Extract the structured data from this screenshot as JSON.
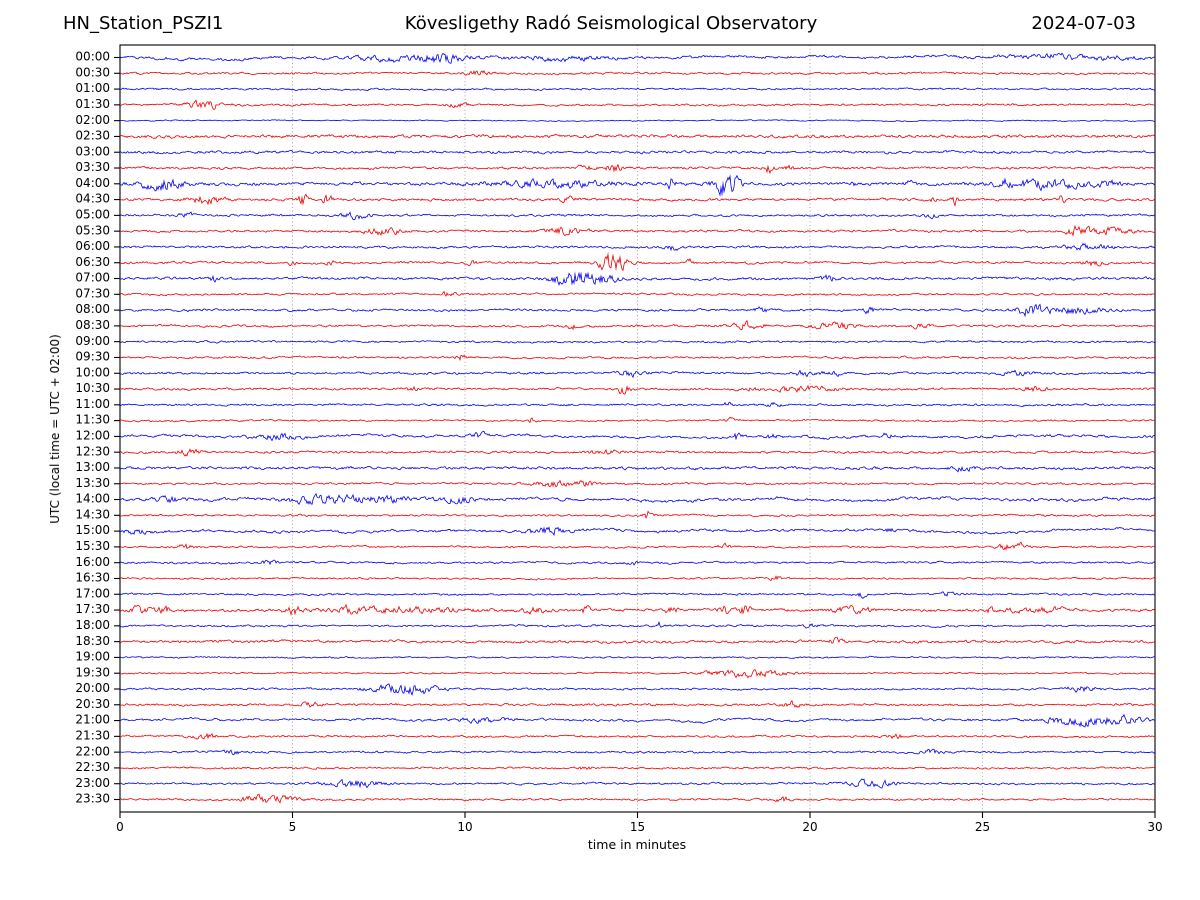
{
  "header": {
    "station": "HN_Station_PSZI1",
    "title": "Kövesligethy Radó Seismological Observatory",
    "date": "2024-07-03"
  },
  "chart_data": {
    "type": "line",
    "variant": "helicorder-day-plot",
    "station": "HN_Station_PSZI1",
    "title": "Kövesligethy Radó Seismological Observatory",
    "date": "2024-07-03",
    "xlabel": "time in minutes",
    "ylabel": "UTC (local time = UTC + 02:00)",
    "x_range": [
      0,
      30
    ],
    "x_ticks": [
      0,
      5,
      10,
      15,
      20,
      25,
      30
    ],
    "grid_minutes": [
      5,
      10,
      15,
      20,
      25
    ],
    "minutes_per_row": 30,
    "grid_on": true,
    "legend": "none",
    "colors": {
      "b": "#0000ee",
      "r": "#ee0000"
    },
    "axis_color": "#000000",
    "grid_color": "#9a9a9a",
    "ev_format": "[center_minute, relative_amplitude, duration_minutes]",
    "rows": [
      {
        "label": "00:00",
        "c": "b",
        "n": 0.75,
        "lp": 1,
        "ev": [
          [
            8.0,
            1.2,
            1.5
          ],
          [
            9.3,
            2.2,
            0.9
          ],
          [
            12.8,
            1.0,
            2.0
          ],
          [
            27.5,
            1.1,
            2.5
          ]
        ]
      },
      {
        "label": "00:30",
        "c": "r",
        "n": 0.65,
        "lp": 0,
        "ev": [
          [
            10.4,
            1.1,
            0.6
          ]
        ]
      },
      {
        "label": "01:00",
        "c": "b",
        "n": 0.6,
        "lp": 0,
        "ev": []
      },
      {
        "label": "01:30",
        "c": "r",
        "n": 0.6,
        "lp": 0,
        "ev": [
          [
            2.5,
            1.9,
            0.8
          ],
          [
            9.8,
            1.1,
            0.4
          ]
        ]
      },
      {
        "label": "02:00",
        "c": "b",
        "n": 0.35,
        "lp": 0,
        "ev": []
      },
      {
        "label": "02:30",
        "c": "r",
        "n": 0.95,
        "lp": 0,
        "ev": []
      },
      {
        "label": "03:00",
        "c": "b",
        "n": 0.8,
        "lp": 0,
        "ev": []
      },
      {
        "label": "03:30",
        "c": "r",
        "n": 0.7,
        "lp": 0,
        "ev": [
          [
            13.5,
            1.5,
            0.3
          ],
          [
            14.3,
            2.1,
            0.3
          ],
          [
            18.8,
            2.2,
            0.2
          ],
          [
            19.4,
            1.3,
            0.2
          ]
        ]
      },
      {
        "label": "04:00",
        "c": "b",
        "n": 0.95,
        "lp": 0,
        "ev": [
          [
            1.2,
            3.0,
            0.8
          ],
          [
            12.5,
            1.7,
            2.5
          ],
          [
            16.0,
            3.4,
            0.15
          ],
          [
            17.6,
            6.0,
            0.5
          ],
          [
            21.3,
            1.6,
            0.12
          ],
          [
            22.9,
            1.5,
            0.2
          ],
          [
            25.6,
            2.0,
            0.3
          ],
          [
            26.9,
            2.1,
            1.6
          ],
          [
            28.7,
            1.4,
            0.5
          ]
        ]
      },
      {
        "label": "04:30",
        "c": "r",
        "n": 0.8,
        "lp": 0,
        "ev": [
          [
            2.5,
            2.0,
            0.7
          ],
          [
            5.3,
            3.2,
            0.18
          ],
          [
            6.0,
            3.0,
            0.18
          ],
          [
            13.0,
            1.5,
            0.3
          ],
          [
            23.5,
            1.3,
            0.2
          ],
          [
            24.2,
            2.7,
            0.12
          ],
          [
            27.3,
            2.6,
            0.12
          ]
        ]
      },
      {
        "label": "05:00",
        "c": "b",
        "n": 0.65,
        "lp": 0,
        "ev": [
          [
            1.9,
            1.4,
            0.3
          ],
          [
            6.8,
            1.8,
            0.6
          ],
          [
            23.5,
            1.3,
            0.3
          ]
        ]
      },
      {
        "label": "05:30",
        "c": "r",
        "n": 0.7,
        "lp": 0,
        "ev": [
          [
            7.6,
            1.6,
            0.8
          ],
          [
            12.9,
            1.6,
            0.9
          ],
          [
            27.8,
            2.6,
            0.5
          ],
          [
            28.7,
            1.5,
            0.8
          ]
        ]
      },
      {
        "label": "06:00",
        "c": "b",
        "n": 0.7,
        "lp": 0,
        "ev": [
          [
            16.0,
            1.4,
            0.3
          ],
          [
            28.0,
            1.2,
            1.0
          ]
        ]
      },
      {
        "label": "06:30",
        "c": "r",
        "n": 0.7,
        "lp": 0,
        "ev": [
          [
            5.0,
            1.6,
            0.15
          ],
          [
            6.1,
            1.6,
            0.15
          ],
          [
            10.2,
            1.3,
            0.2
          ],
          [
            14.3,
            4.5,
            0.6
          ],
          [
            16.5,
            1.7,
            0.15
          ],
          [
            28.2,
            1.5,
            0.4
          ]
        ]
      },
      {
        "label": "07:00",
        "c": "b",
        "n": 0.8,
        "lp": 0,
        "ev": [
          [
            2.7,
            1.6,
            0.15
          ],
          [
            13.0,
            4.0,
            0.7
          ],
          [
            13.9,
            2.0,
            0.8
          ],
          [
            20.5,
            1.3,
            0.4
          ]
        ]
      },
      {
        "label": "07:30",
        "c": "r",
        "n": 0.6,
        "lp": 0,
        "ev": [
          [
            9.5,
            1.2,
            0.3
          ]
        ]
      },
      {
        "label": "08:00",
        "c": "b",
        "n": 0.7,
        "lp": 0,
        "ev": [
          [
            18.6,
            1.3,
            0.3
          ],
          [
            21.7,
            1.3,
            0.3
          ],
          [
            26.4,
            2.8,
            0.6
          ],
          [
            27.6,
            1.6,
            1.2
          ]
        ]
      },
      {
        "label": "08:30",
        "c": "r",
        "n": 0.7,
        "lp": 0,
        "ev": [
          [
            13.1,
            1.4,
            0.2
          ],
          [
            18.2,
            1.8,
            0.6
          ],
          [
            20.7,
            1.8,
            0.8
          ],
          [
            23.2,
            1.3,
            0.3
          ]
        ]
      },
      {
        "label": "09:00",
        "c": "b",
        "n": 0.6,
        "lp": 0,
        "ev": []
      },
      {
        "label": "09:30",
        "c": "r",
        "n": 0.6,
        "lp": 0,
        "ev": [
          [
            9.9,
            1.8,
            0.2
          ]
        ]
      },
      {
        "label": "10:00",
        "c": "b",
        "n": 0.7,
        "lp": 0,
        "ev": [
          [
            14.8,
            1.6,
            0.5
          ],
          [
            19.8,
            1.3,
            0.3
          ],
          [
            20.6,
            1.4,
            0.4
          ],
          [
            26.0,
            1.2,
            0.6
          ]
        ]
      },
      {
        "label": "10:30",
        "c": "r",
        "n": 0.7,
        "lp": 0,
        "ev": [
          [
            8.5,
            1.3,
            0.3
          ],
          [
            14.6,
            2.4,
            0.25
          ],
          [
            18.3,
            1.6,
            0.15
          ],
          [
            19.8,
            1.3,
            1.4
          ],
          [
            26.5,
            1.2,
            0.5
          ]
        ]
      },
      {
        "label": "11:00",
        "c": "b",
        "n": 0.6,
        "lp": 0,
        "ev": [
          [
            17.6,
            1.5,
            0.2
          ],
          [
            19.0,
            1.3,
            0.3
          ]
        ]
      },
      {
        "label": "11:30",
        "c": "r",
        "n": 0.55,
        "lp": 0,
        "ev": [
          [
            11.9,
            1.6,
            0.15
          ],
          [
            17.7,
            1.3,
            0.2
          ]
        ]
      },
      {
        "label": "12:00",
        "c": "b",
        "n": 0.7,
        "lp": 1,
        "ev": [
          [
            4.5,
            1.5,
            0.9
          ],
          [
            10.4,
            1.4,
            0.3
          ],
          [
            17.9,
            2.5,
            0.18
          ],
          [
            18.9,
            1.4,
            0.2
          ],
          [
            22.2,
            1.3,
            0.2
          ]
        ]
      },
      {
        "label": "12:30",
        "c": "r",
        "n": 0.7,
        "lp": 0,
        "ev": [
          [
            2.0,
            1.5,
            0.5
          ],
          [
            14.0,
            1.2,
            0.6
          ]
        ]
      },
      {
        "label": "13:00",
        "c": "b",
        "n": 0.85,
        "lp": 0,
        "ev": [
          [
            24.5,
            1.2,
            0.5
          ]
        ]
      },
      {
        "label": "13:30",
        "c": "r",
        "n": 0.6,
        "lp": 0,
        "ev": [
          [
            12.5,
            1.6,
            0.8
          ],
          [
            13.5,
            1.3,
            0.4
          ]
        ]
      },
      {
        "label": "14:00",
        "c": "b",
        "n": 0.8,
        "lp": 1,
        "ev": [
          [
            1.5,
            1.4,
            0.6
          ],
          [
            5.9,
            2.0,
            1.4
          ],
          [
            7.6,
            1.4,
            1.5
          ],
          [
            9.8,
            1.3,
            0.8
          ]
        ]
      },
      {
        "label": "14:30",
        "c": "r",
        "n": 0.6,
        "lp": 0,
        "ev": [
          [
            15.3,
            2.6,
            0.18
          ]
        ]
      },
      {
        "label": "15:00",
        "c": "b",
        "n": 0.7,
        "lp": 1,
        "ev": [
          [
            0.5,
            1.3,
            0.5
          ],
          [
            12.4,
            2.2,
            0.8
          ],
          [
            22.3,
            1.8,
            0.15
          ]
        ]
      },
      {
        "label": "15:30",
        "c": "r",
        "n": 0.55,
        "lp": 0,
        "ev": [
          [
            1.9,
            1.5,
            0.3
          ],
          [
            17.5,
            1.2,
            0.3
          ],
          [
            25.6,
            2.0,
            0.25
          ],
          [
            26.1,
            1.6,
            0.3
          ]
        ]
      },
      {
        "label": "16:00",
        "c": "b",
        "n": 0.6,
        "lp": 0,
        "ev": [
          [
            4.3,
            1.3,
            0.3
          ],
          [
            14.8,
            2.0,
            0.18
          ]
        ]
      },
      {
        "label": "16:30",
        "c": "r",
        "n": 0.55,
        "lp": 0,
        "ev": [
          [
            19.0,
            1.1,
            0.3
          ]
        ]
      },
      {
        "label": "17:00",
        "c": "b",
        "n": 0.6,
        "lp": 0,
        "ev": [
          [
            21.5,
            1.4,
            0.2
          ],
          [
            24.0,
            1.2,
            0.3
          ]
        ]
      },
      {
        "label": "17:30",
        "c": "r",
        "n": 0.8,
        "lp": 0,
        "ev": [
          [
            0.6,
            1.6,
            0.5
          ],
          [
            1.3,
            1.6,
            0.3
          ],
          [
            5.0,
            2.2,
            0.3
          ],
          [
            6.5,
            2.8,
            0.2
          ],
          [
            8.0,
            1.4,
            3.0
          ],
          [
            12.0,
            2.2,
            0.4
          ],
          [
            13.5,
            1.8,
            0.2
          ],
          [
            16.0,
            1.9,
            0.3
          ],
          [
            17.5,
            2.2,
            0.2
          ],
          [
            18.1,
            2.2,
            0.3
          ],
          [
            21.2,
            1.5,
            0.8
          ],
          [
            25.2,
            3.0,
            0.13
          ],
          [
            25.9,
            1.6,
            0.3
          ],
          [
            26.9,
            1.4,
            0.8
          ]
        ]
      },
      {
        "label": "18:00",
        "c": "b",
        "n": 0.6,
        "lp": 0,
        "ev": [
          [
            15.6,
            2.2,
            0.15
          ],
          [
            20.0,
            1.2,
            0.3
          ]
        ]
      },
      {
        "label": "18:30",
        "c": "r",
        "n": 0.85,
        "lp": 0,
        "ev": [
          [
            20.7,
            1.5,
            0.3
          ]
        ]
      },
      {
        "label": "19:00",
        "c": "b",
        "n": 0.5,
        "lp": 0,
        "ev": []
      },
      {
        "label": "19:30",
        "c": "r",
        "n": 0.5,
        "lp": 0,
        "ev": [
          [
            18.2,
            1.7,
            1.6
          ]
        ]
      },
      {
        "label": "20:00",
        "c": "b",
        "n": 0.6,
        "lp": 0,
        "ev": [
          [
            7.6,
            1.4,
            0.9
          ],
          [
            8.6,
            2.2,
            1.0
          ],
          [
            27.9,
            1.8,
            0.6
          ]
        ]
      },
      {
        "label": "20:30",
        "c": "r",
        "n": 0.7,
        "lp": 0,
        "ev": [
          [
            5.5,
            1.2,
            0.4
          ],
          [
            19.5,
            1.3,
            0.4
          ]
        ]
      },
      {
        "label": "21:00",
        "c": "b",
        "n": 0.6,
        "lp": 1,
        "ev": [
          [
            10.5,
            1.2,
            1.0
          ],
          [
            27.7,
            2.0,
            1.2
          ],
          [
            28.9,
            1.7,
            1.1
          ]
        ]
      },
      {
        "label": "21:30",
        "c": "r",
        "n": 0.6,
        "lp": 0,
        "ev": [
          [
            2.5,
            1.4,
            0.5
          ],
          [
            22.5,
            2.0,
            0.25
          ]
        ]
      },
      {
        "label": "22:00",
        "c": "b",
        "n": 0.6,
        "lp": 0,
        "ev": [
          [
            3.3,
            1.4,
            0.3
          ],
          [
            23.5,
            1.2,
            0.5
          ]
        ]
      },
      {
        "label": "22:30",
        "c": "r",
        "n": 0.6,
        "lp": 0,
        "ev": [
          [
            13.5,
            1.2,
            0.3
          ]
        ]
      },
      {
        "label": "23:00",
        "c": "b",
        "n": 0.6,
        "lp": 0,
        "ev": [
          [
            6.8,
            1.8,
            1.2
          ],
          [
            21.8,
            1.8,
            0.9
          ]
        ]
      },
      {
        "label": "23:30",
        "c": "r",
        "n": 0.6,
        "lp": 0,
        "ev": [
          [
            3.8,
            1.3,
            0.4
          ],
          [
            4.5,
            1.8,
            0.9
          ],
          [
            19.2,
            1.3,
            0.3
          ]
        ]
      }
    ]
  }
}
